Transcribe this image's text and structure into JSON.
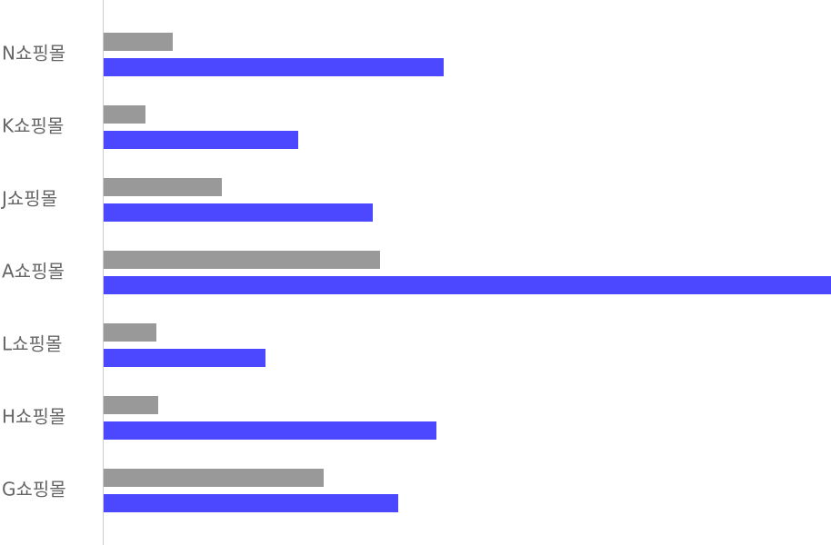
{
  "chart_data": {
    "type": "hbar",
    "categories": [
      "N쇼핑몰",
      "K쇼핑몰",
      "J쇼핑몰",
      "A쇼핑몰",
      "L쇼핑몰",
      "H쇼핑몰",
      "G쇼핑몰"
    ],
    "series": [
      {
        "color": "#999999",
        "values": [
          76,
          46,
          130,
          304,
          58,
          60,
          242
        ]
      },
      {
        "color": "#4b48ff",
        "values": [
          374,
          214,
          296,
          800,
          178,
          366,
          324
        ]
      }
    ],
    "xlim": [
      0,
      800
    ]
  }
}
